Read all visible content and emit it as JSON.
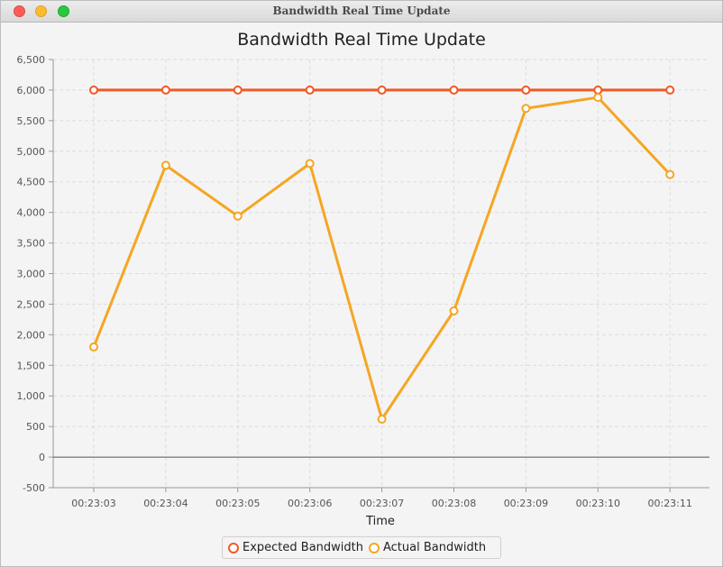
{
  "window": {
    "title": "Bandwidth Real Time Update"
  },
  "chart_data": {
    "type": "line",
    "title": "Bandwidth Real Time Update",
    "xlabel": "Time",
    "ylabel": "",
    "categories": [
      "00:23:03",
      "00:23:04",
      "00:23:05",
      "00:23:06",
      "00:23:07",
      "00:23:08",
      "00:23:09",
      "00:23:10",
      "00:23:11"
    ],
    "ylim": [
      -500,
      6500
    ],
    "yticks": [
      -500,
      0,
      500,
      1000,
      1500,
      2000,
      2500,
      3000,
      3500,
      4000,
      4500,
      5000,
      5500,
      6000,
      6500
    ],
    "grid": true,
    "legend_position": "bottom",
    "series": [
      {
        "name": "Expected Bandwidth",
        "color": "#f05a28",
        "values": [
          6000,
          6000,
          6000,
          6000,
          6000,
          6000,
          6000,
          6000,
          6000
        ]
      },
      {
        "name": "Actual Bandwidth",
        "color": "#f5a623",
        "values": [
          1800,
          4770,
          3940,
          4800,
          620,
          2390,
          5700,
          5880,
          4620
        ]
      }
    ]
  }
}
